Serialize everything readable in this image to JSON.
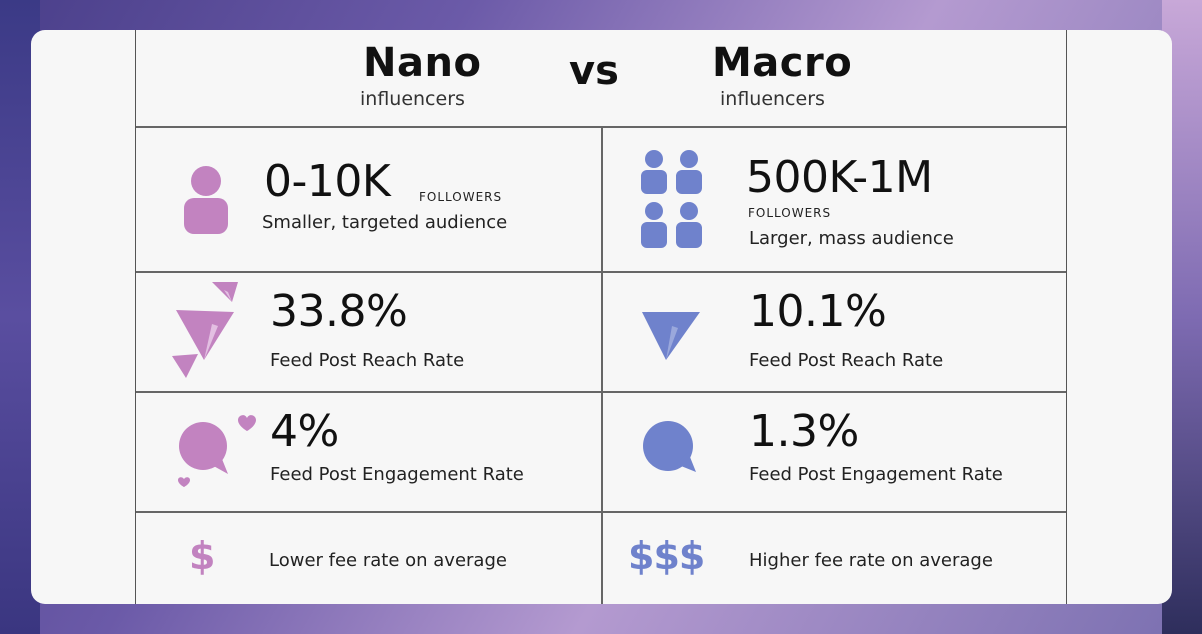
{
  "colors": {
    "nano": "#c283c0",
    "macro": "#6f82cc",
    "text": "#111111",
    "card": "#f7f7f7"
  },
  "header": {
    "left_title": "Nano",
    "left_sub": "influencers",
    "vs": "vs",
    "right_title": "Macro",
    "right_sub": "influencers"
  },
  "nano": {
    "followers_value": "0-10K",
    "followers_label": "FOLLOWERS",
    "audience": "Smaller, targeted audience",
    "reach_value": "33.8%",
    "reach_label": "Feed Post Reach Rate",
    "engagement_value": "4%",
    "engagement_label": "Feed Post Engagement Rate",
    "fee_symbol": "$",
    "fee_label": "Lower fee rate on average"
  },
  "macro": {
    "followers_value": "500K-1M",
    "followers_label": "FOLLOWERS",
    "audience": "Larger, mass audience",
    "reach_value": "10.1%",
    "reach_label": "Feed Post Reach Rate",
    "engagement_value": "1.3%",
    "engagement_label": "Feed Post Engagement Rate",
    "fee_symbol": "$$$",
    "fee_label": "Higher fee rate on average"
  },
  "icons": {
    "nano_followers": "person-icon",
    "macro_followers": "group-icon",
    "nano_reach": "paper-planes-icon",
    "macro_reach": "paper-plane-icon",
    "nano_engagement": "chat-hearts-icon",
    "macro_engagement": "chat-bubble-icon",
    "nano_fee": "dollar-icon",
    "macro_fee": "dollars-icon"
  }
}
